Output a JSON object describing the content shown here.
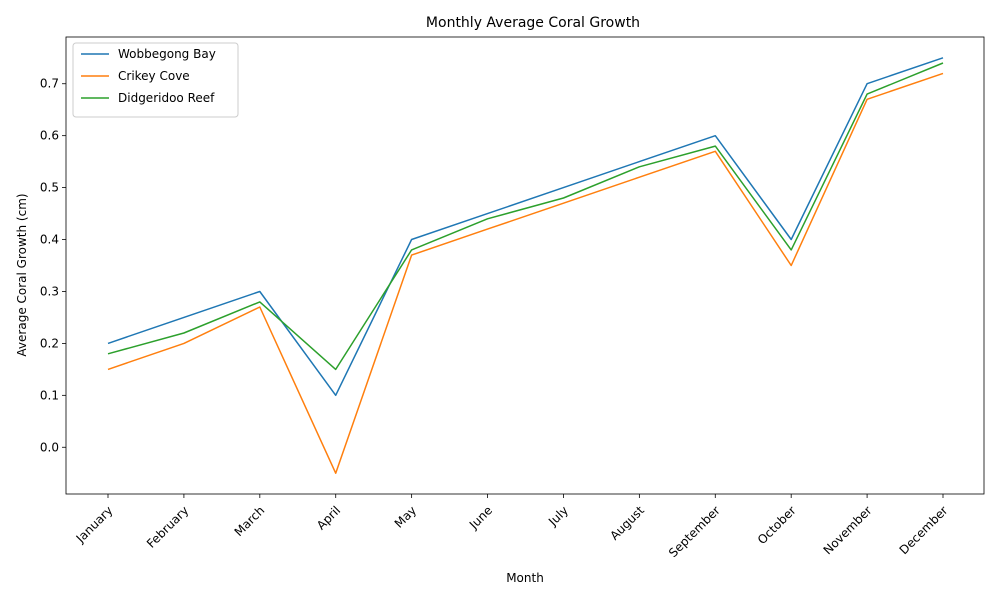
{
  "chart_data": {
    "type": "line",
    "title": "Monthly Average Coral Growth",
    "xlabel": "Month",
    "ylabel": "Average Coral Growth (cm)",
    "categories": [
      "January",
      "February",
      "March",
      "April",
      "May",
      "June",
      "July",
      "August",
      "September",
      "October",
      "November",
      "December"
    ],
    "y_ticks": [
      "0.0",
      "0.1",
      "0.2",
      "0.3",
      "0.4",
      "0.5",
      "0.6",
      "0.7"
    ],
    "ylim": [
      -0.09,
      0.79
    ],
    "grid": false,
    "legend_position": "top-left",
    "series": [
      {
        "name": "Wobbegong Bay",
        "color": "#1f77b4",
        "values": [
          0.2,
          0.25,
          0.3,
          0.1,
          0.4,
          0.45,
          0.5,
          0.55,
          0.6,
          0.4,
          0.7,
          0.75
        ]
      },
      {
        "name": "Crikey Cove",
        "color": "#ff7f0e",
        "values": [
          0.15,
          0.2,
          0.27,
          -0.05,
          0.37,
          0.42,
          0.47,
          0.52,
          0.57,
          0.35,
          0.67,
          0.72
        ]
      },
      {
        "name": "Didgeridoo Reef",
        "color": "#2ca02c",
        "values": [
          0.18,
          0.22,
          0.28,
          0.15,
          0.38,
          0.44,
          0.48,
          0.54,
          0.58,
          0.38,
          0.68,
          0.74
        ]
      }
    ]
  }
}
